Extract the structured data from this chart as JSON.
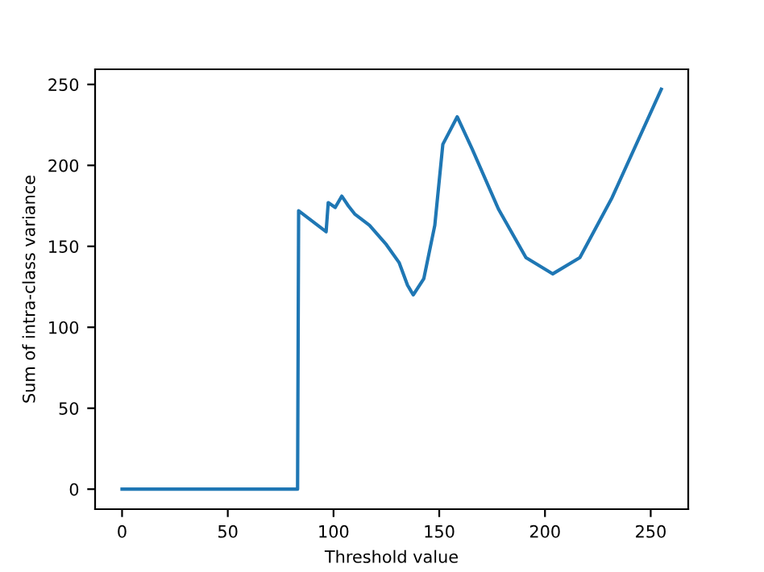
{
  "chart_data": {
    "type": "line",
    "xlabel": "Threshold value",
    "ylabel": "Sum of intra-class variance",
    "x": [
      0,
      83,
      83.5,
      96.5,
      97.5,
      100.8,
      103.9,
      107,
      110,
      117,
      125,
      131,
      135,
      137.7,
      142.7,
      147.9,
      151.7,
      158.5,
      165.6,
      178,
      191,
      203.7,
      216.5,
      231.7,
      255
    ],
    "series": [
      {
        "color": "#1f77b4",
        "values": [
          0,
          0,
          172,
          159,
          177,
          174,
          181,
          175,
          170,
          163,
          151,
          140,
          126,
          120,
          130,
          163,
          213,
          230,
          210,
          173,
          143,
          133,
          143,
          180,
          247
        ]
      }
    ],
    "xlim": [
      -12.75,
      267.75
    ],
    "ylim": [
      -12.35,
      259.35
    ],
    "xticks": [
      0,
      50,
      100,
      150,
      200,
      250
    ],
    "yticks": [
      0,
      50,
      100,
      150,
      200,
      250
    ],
    "grid": false,
    "legend": false,
    "marker": "none",
    "line_style": "solid"
  }
}
